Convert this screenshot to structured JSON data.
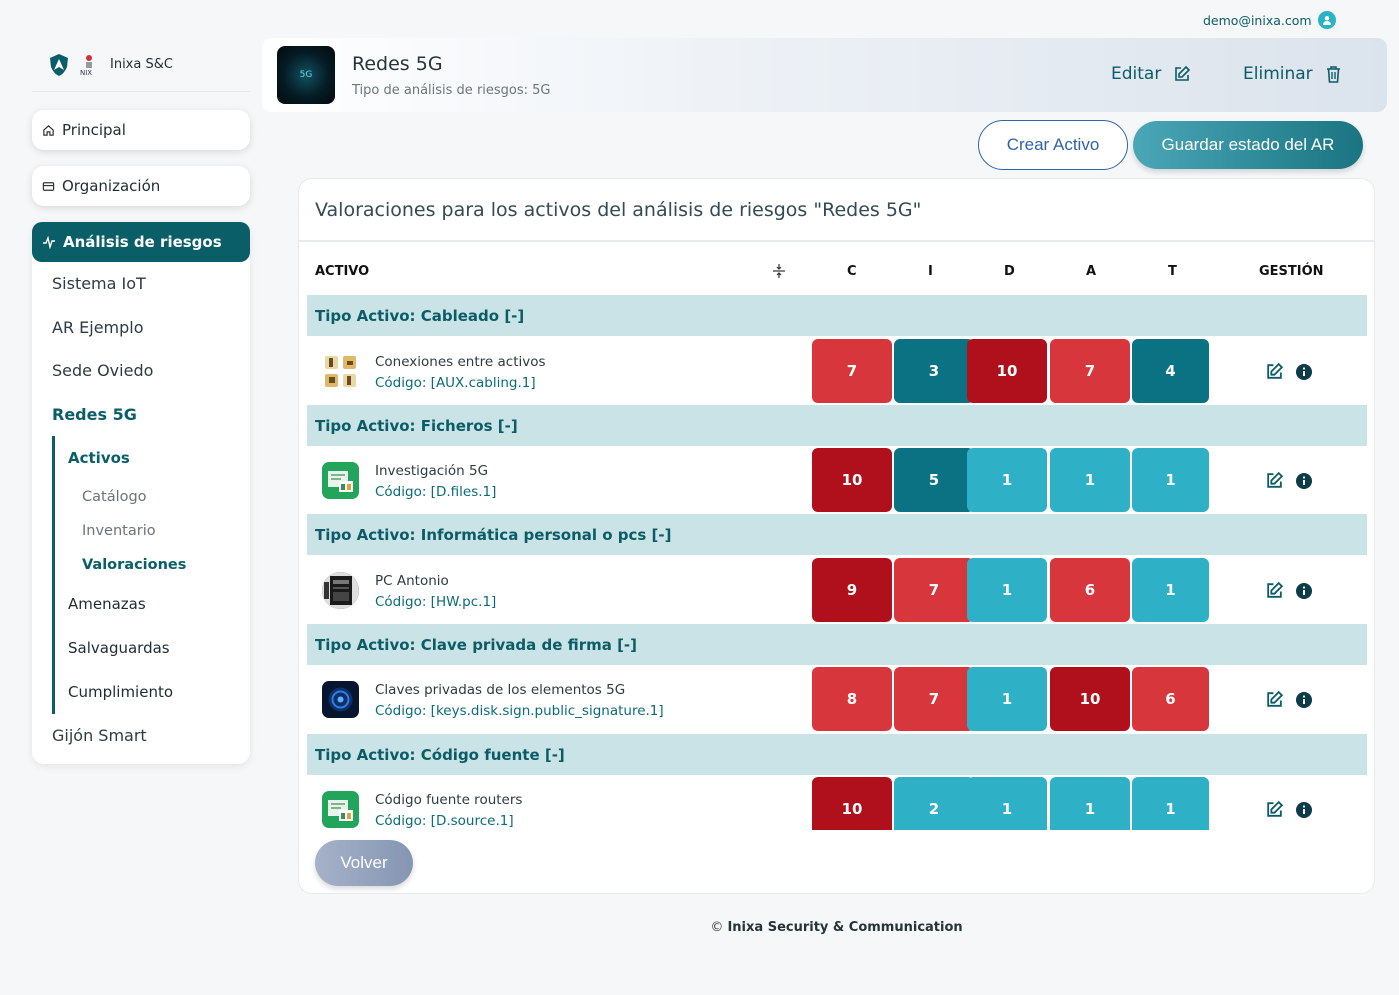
{
  "user": {
    "email": "demo@inixa.com",
    "icon": "user-icon"
  },
  "brand": {
    "name": "Inixa S&C",
    "logo_text": "NIX"
  },
  "nav": {
    "principal": "Principal",
    "organizacion": "Organización",
    "analisis": "Análisis de riesgos",
    "items": [
      "Sistema IoT",
      "AR Ejemplo",
      "Sede Oviedo",
      "Redes 5G",
      "Gijón Smart"
    ],
    "tree": {
      "activos": "Activos",
      "catalogo": "Catálogo",
      "inventario": "Inventario",
      "valoraciones": "Valoraciones",
      "amenazas": "Amenazas",
      "salvaguardas": "Salvaguardas",
      "cumplimiento": "Cumplimiento"
    }
  },
  "header": {
    "title": "Redes 5G",
    "subtitle": "Tipo de análisis de riesgos: 5G",
    "thumb_text": "5G",
    "edit_label": "Editar",
    "delete_label": "Eliminar"
  },
  "actions": {
    "create": "Crear Activo",
    "save": "Guardar estado del AR",
    "back": "Volver"
  },
  "panel": {
    "title": "Valoraciones para los activos del análisis de riesgos \"Redes 5G\"",
    "columns": {
      "activo": "ACTIVO",
      "c": "C",
      "i": "I",
      "d": "D",
      "a": "A",
      "t": "T",
      "gestion": "GESTIÓN"
    }
  },
  "colors": {
    "low": "#2eb1c7",
    "mid": "#0b7284",
    "high": "#d7363d",
    "critical": "#b0101b"
  },
  "groups": [
    {
      "label": "Tipo Activo: Cableado [-]",
      "asset": {
        "name": "Conexiones entre activos",
        "code": "Código: [AUX.cabling.1]",
        "values": [
          "7",
          "3",
          "10",
          "7",
          "4"
        ],
        "levels": [
          "high",
          "mid",
          "critical",
          "high",
          "mid"
        ]
      }
    },
    {
      "label": "Tipo Activo: Ficheros [-]",
      "asset": {
        "name": "Investigación 5G",
        "code": "Código: [D.files.1]",
        "values": [
          "10",
          "5",
          "1",
          "1",
          "1"
        ],
        "levels": [
          "critical",
          "mid",
          "low",
          "low",
          "low"
        ]
      }
    },
    {
      "label": "Tipo Activo: Informática personal o pcs [-]",
      "asset": {
        "name": "PC Antonio",
        "code": "Código: [HW.pc.1]",
        "values": [
          "9",
          "7",
          "1",
          "6",
          "1"
        ],
        "levels": [
          "critical",
          "high",
          "low",
          "high",
          "low"
        ]
      }
    },
    {
      "label": "Tipo Activo: Clave privada de firma [-]",
      "asset": {
        "name": "Claves privadas de los elementos 5G",
        "code": "Código: [keys.disk.sign.public_signature.1]",
        "values": [
          "8",
          "7",
          "1",
          "10",
          "6"
        ],
        "levels": [
          "high",
          "high",
          "low",
          "critical",
          "high"
        ]
      }
    },
    {
      "label": "Tipo Activo: Código fuente [-]",
      "asset": {
        "name": "Código fuente routers",
        "code": "Código: [D.source.1]",
        "values": [
          "10",
          "2",
          "1",
          "1",
          "1"
        ],
        "levels": [
          "critical",
          "low",
          "low",
          "low",
          "low"
        ]
      }
    }
  ],
  "footer": {
    "prefix": "©",
    "company": "Inixa Security & Communication"
  }
}
